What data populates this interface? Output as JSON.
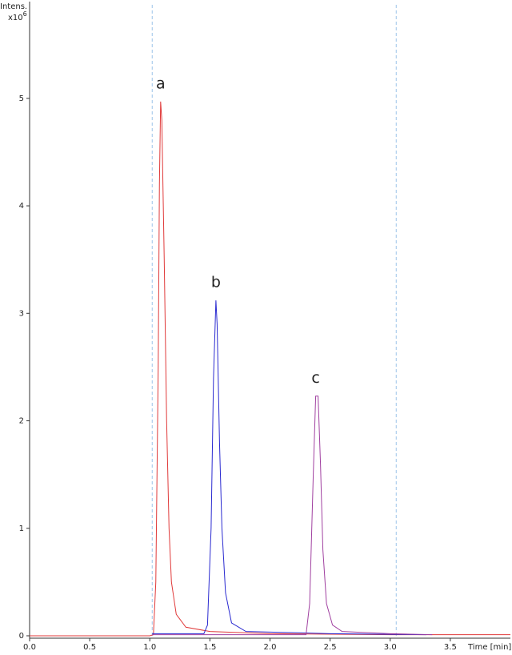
{
  "chart_data": {
    "type": "line",
    "ylabel": "Intens.",
    "y_multiplier": {
      "base": "x10",
      "exponent": "6"
    },
    "xlabel": "Time [min]",
    "xlim": [
      0,
      4.0
    ],
    "ylim": [
      0,
      5.9
    ],
    "xticks": [
      {
        "value": 0,
        "label": "0.0"
      },
      0.5,
      {
        "value": 1,
        "label": "1.0"
      },
      1.5,
      {
        "value": 2,
        "label": "2.0"
      },
      2.5,
      {
        "value": 3,
        "label": "3.0"
      },
      3.5
    ],
    "yticks": [
      0,
      1,
      2,
      3,
      4,
      5
    ],
    "vlines": [
      1.02,
      3.05
    ],
    "series": [
      {
        "name": "a",
        "color": "#e03a3a",
        "x": [
          0,
          1.0,
          1.03,
          1.05,
          1.07,
          1.08,
          1.09,
          1.1,
          1.12,
          1.14,
          1.16,
          1.18,
          1.22,
          1.3,
          1.5,
          2.0,
          3.0,
          4.0
        ],
        "values": [
          0,
          0,
          0.01,
          0.5,
          2.5,
          4.2,
          4.97,
          4.8,
          3.5,
          2.0,
          1.0,
          0.5,
          0.2,
          0.08,
          0.04,
          0.02,
          0.01,
          0.01
        ]
      },
      {
        "name": "b",
        "color": "#2a2ad0",
        "x": [
          1.02,
          1.2,
          1.45,
          1.48,
          1.51,
          1.53,
          1.55,
          1.56,
          1.58,
          1.6,
          1.63,
          1.68,
          1.8,
          2.5,
          3.3
        ],
        "values": [
          0.02,
          0.02,
          0.02,
          0.1,
          1.0,
          2.4,
          3.12,
          2.9,
          1.8,
          1.0,
          0.4,
          0.12,
          0.04,
          0.02,
          0.01
        ]
      },
      {
        "name": "c",
        "color": "#a040a0",
        "x": [
          1.02,
          2.0,
          2.3,
          2.33,
          2.36,
          2.38,
          2.4,
          2.42,
          2.44,
          2.47,
          2.52,
          2.6,
          3.0,
          3.35
        ],
        "values": [
          0.01,
          0.01,
          0.01,
          0.3,
          1.5,
          2.23,
          2.23,
          1.6,
          0.8,
          0.3,
          0.1,
          0.04,
          0.02,
          0.01
        ]
      }
    ]
  }
}
